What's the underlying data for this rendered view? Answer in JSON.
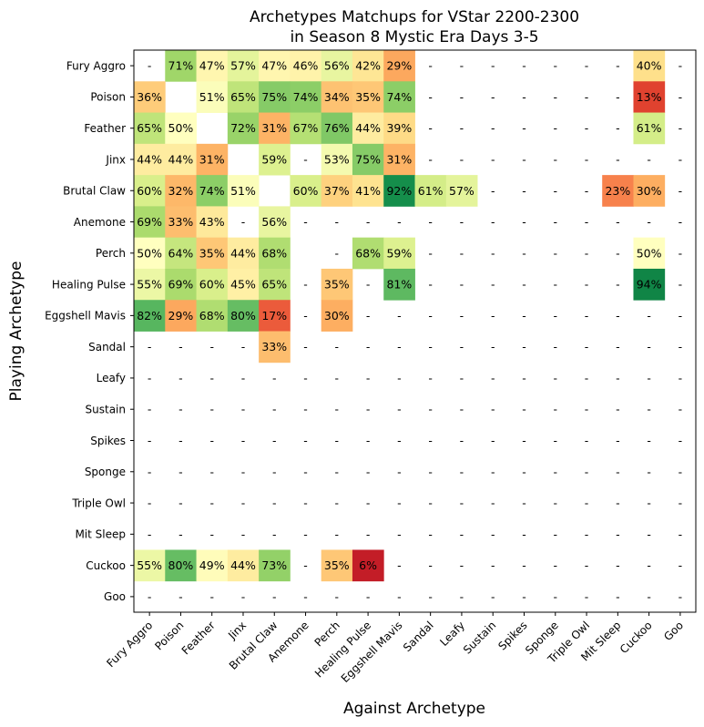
{
  "chart_data": {
    "type": "heatmap",
    "title_lines": [
      "Archetypes Matchups for VStar 2200-2300",
      "in Season 8 Mystic Era Days 3-5"
    ],
    "xlabel": "Against Archetype",
    "ylabel": "Playing Archetype",
    "rows": [
      "Fury Aggro",
      "Poison",
      "Feather",
      "Jinx",
      "Brutal Claw",
      "Anemone",
      "Perch",
      "Healing Pulse",
      "Eggshell Mavis",
      "Sandal",
      "Leafy",
      "Sustain",
      "Spikes",
      "Sponge",
      "Triple Owl",
      "Mit Sleep",
      "Cuckoo",
      "Goo"
    ],
    "columns": [
      "Fury Aggro",
      "Poison",
      "Feather",
      "Jinx",
      "Brutal Claw",
      "Anemone",
      "Perch",
      "Healing Pulse",
      "Eggshell Mavis",
      "Sandal",
      "Leafy",
      "Sustain",
      "Spikes",
      "Sponge",
      "Triple Owl",
      "Mit Sleep",
      "Cuckoo",
      "Goo"
    ],
    "value_range": [
      0,
      100
    ],
    "colormap": "RdYlGn",
    "missing_label": "-",
    "values": [
      [
        null,
        71,
        47,
        57,
        47,
        46,
        56,
        42,
        29,
        null,
        null,
        null,
        null,
        null,
        null,
        null,
        40,
        null
      ],
      [
        36,
        null,
        51,
        65,
        75,
        74,
        34,
        35,
        74,
        null,
        null,
        null,
        null,
        null,
        null,
        null,
        13,
        null
      ],
      [
        65,
        50,
        null,
        72,
        31,
        67,
        76,
        44,
        39,
        null,
        null,
        null,
        null,
        null,
        null,
        null,
        61,
        null
      ],
      [
        44,
        44,
        31,
        null,
        59,
        null,
        53,
        75,
        31,
        null,
        null,
        null,
        null,
        null,
        null,
        null,
        null,
        null
      ],
      [
        60,
        32,
        74,
        51,
        null,
        60,
        37,
        41,
        92,
        61,
        57,
        null,
        null,
        null,
        null,
        23,
        30,
        null
      ],
      [
        69,
        33,
        43,
        null,
        56,
        null,
        null,
        null,
        null,
        null,
        null,
        null,
        null,
        null,
        null,
        null,
        null,
        null
      ],
      [
        50,
        64,
        35,
        44,
        68,
        null,
        null,
        68,
        59,
        null,
        null,
        null,
        null,
        null,
        null,
        null,
        50,
        null
      ],
      [
        55,
        69,
        60,
        45,
        65,
        null,
        35,
        null,
        81,
        null,
        null,
        null,
        null,
        null,
        null,
        null,
        94,
        null
      ],
      [
        82,
        29,
        68,
        80,
        17,
        null,
        30,
        null,
        null,
        null,
        null,
        null,
        null,
        null,
        null,
        null,
        null,
        null
      ],
      [
        null,
        null,
        null,
        null,
        33,
        null,
        null,
        null,
        null,
        null,
        null,
        null,
        null,
        null,
        null,
        null,
        null,
        null
      ],
      [
        null,
        null,
        null,
        null,
        null,
        null,
        null,
        null,
        null,
        null,
        null,
        null,
        null,
        null,
        null,
        null,
        null,
        null
      ],
      [
        null,
        null,
        null,
        null,
        null,
        null,
        null,
        null,
        null,
        null,
        null,
        null,
        null,
        null,
        null,
        null,
        null,
        null
      ],
      [
        null,
        null,
        null,
        null,
        null,
        null,
        null,
        null,
        null,
        null,
        null,
        null,
        null,
        null,
        null,
        null,
        null,
        null
      ],
      [
        null,
        null,
        null,
        null,
        null,
        null,
        null,
        null,
        null,
        null,
        null,
        null,
        null,
        null,
        null,
        null,
        null,
        null
      ],
      [
        null,
        null,
        null,
        null,
        null,
        null,
        null,
        null,
        null,
        null,
        null,
        null,
        null,
        null,
        null,
        null,
        null,
        null
      ],
      [
        null,
        null,
        null,
        null,
        null,
        null,
        null,
        null,
        null,
        null,
        null,
        null,
        null,
        null,
        null,
        null,
        null,
        null
      ],
      [
        55,
        80,
        49,
        44,
        73,
        null,
        35,
        6,
        null,
        null,
        null,
        null,
        null,
        null,
        null,
        null,
        null,
        null
      ],
      [
        null,
        null,
        null,
        null,
        null,
        null,
        null,
        null,
        null,
        null,
        null,
        null,
        null,
        null,
        null,
        null,
        null,
        null
      ]
    ],
    "blank_cells": [
      [
        1,
        1
      ],
      [
        2,
        2
      ],
      [
        3,
        3
      ],
      [
        4,
        4
      ],
      [
        6,
        5
      ]
    ]
  }
}
